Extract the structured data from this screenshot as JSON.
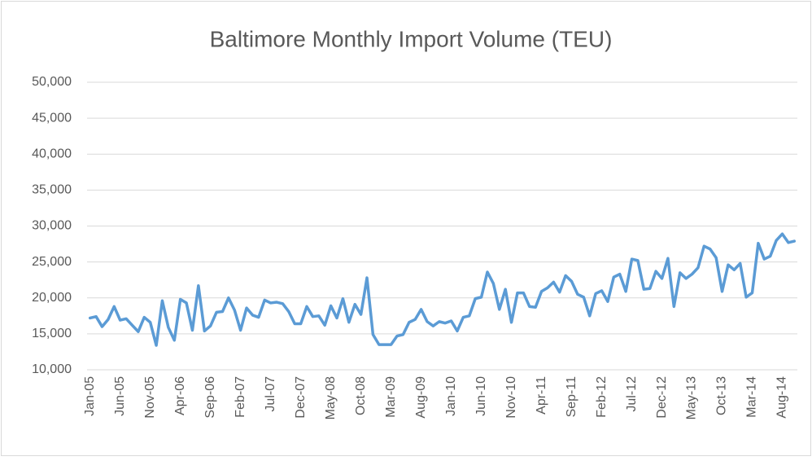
{
  "chart_data": {
    "type": "line",
    "title": "Baltimore Monthly Import Volume (TEU)",
    "categories": [
      "Jan-05",
      null,
      null,
      null,
      null,
      "Jun-05",
      null,
      null,
      null,
      null,
      "Nov-05",
      null,
      null,
      null,
      null,
      "Apr-06",
      null,
      null,
      null,
      null,
      "Sep-06",
      null,
      null,
      null,
      null,
      "Feb-07",
      null,
      null,
      null,
      null,
      "Jul-07",
      null,
      null,
      null,
      null,
      "Dec-07",
      null,
      null,
      null,
      null,
      "May-08",
      null,
      null,
      null,
      null,
      "Oct-08",
      null,
      null,
      null,
      null,
      "Mar-09",
      null,
      null,
      null,
      null,
      "Aug-09",
      null,
      null,
      null,
      null,
      "Jan-10",
      null,
      null,
      null,
      null,
      "Jun-10",
      null,
      null,
      null,
      null,
      "Nov-10",
      null,
      null,
      null,
      null,
      "Apr-11",
      null,
      null,
      null,
      null,
      "Sep-11",
      null,
      null,
      null,
      null,
      "Feb-12",
      null,
      null,
      null,
      null,
      "Jul-12",
      null,
      null,
      null,
      null,
      "Dec-12",
      null,
      null,
      null,
      null,
      "May-13",
      null,
      null,
      null,
      null,
      "Oct-13",
      null,
      null,
      null,
      null,
      "Mar-14",
      null,
      null,
      null,
      null,
      "Aug-14",
      null,
      null
    ],
    "values": [
      17200,
      17400,
      16000,
      17000,
      18800,
      16900,
      17100,
      16200,
      15300,
      17300,
      16600,
      13400,
      19600,
      15900,
      14100,
      19800,
      19300,
      15500,
      21700,
      15400,
      16100,
      18000,
      18100,
      20000,
      18300,
      15500,
      18600,
      17600,
      17300,
      19700,
      19300,
      19400,
      19200,
      18100,
      16400,
      16400,
      18800,
      17400,
      17500,
      16200,
      18900,
      17200,
      19900,
      16600,
      19100,
      17700,
      22800,
      14900,
      13500,
      13500,
      13500,
      14700,
      14900,
      16600,
      17000,
      18400,
      16700,
      16100,
      16700,
      16500,
      16800,
      15400,
      17300,
      17500,
      19900,
      20100,
      23600,
      22000,
      18400,
      21200,
      16600,
      20700,
      20700,
      18800,
      18700,
      20900,
      21400,
      22200,
      20800,
      23100,
      22300,
      20500,
      20100,
      17500,
      20600,
      21000,
      19500,
      22900,
      23300,
      20900,
      25400,
      25200,
      21200,
      21300,
      23700,
      22700,
      25500,
      18800,
      23500,
      22700,
      23300,
      24200,
      27200,
      26800,
      25600,
      20900,
      24600,
      23900,
      24800,
      20100,
      20700,
      27600,
      25400,
      25800,
      28000,
      28900,
      27700,
      27900
    ],
    "color": "#5b9bd5",
    "ylim": [
      10000,
      50000
    ],
    "yticks": [
      {
        "value": 10000,
        "label": "10,000"
      },
      {
        "value": 15000,
        "label": "15,000"
      },
      {
        "value": 20000,
        "label": "20,000"
      },
      {
        "value": 25000,
        "label": "25,000"
      },
      {
        "value": 30000,
        "label": "30,000"
      },
      {
        "value": 35000,
        "label": "35,000"
      },
      {
        "value": 40000,
        "label": "40,000"
      },
      {
        "value": 45000,
        "label": "45,000"
      },
      {
        "value": 50000,
        "label": "50,000"
      }
    ],
    "grid": true
  }
}
